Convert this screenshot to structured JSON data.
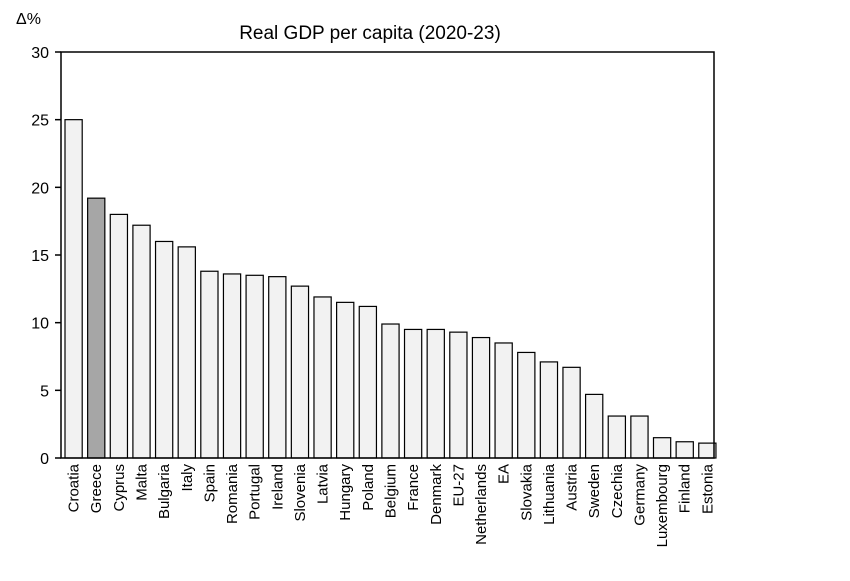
{
  "chart_data": {
    "type": "bar",
    "title": "Real GDP per capita (2020-23)",
    "ylabel": "Δ%",
    "xlabel": "",
    "ylim": [
      0,
      30
    ],
    "yticks": [
      0,
      5,
      10,
      15,
      20,
      25,
      30
    ],
    "grid": false,
    "legend": "none",
    "colors": {
      "default_bar": "#f2f2f2",
      "highlight_bar": "#a6a6a6",
      "stroke": "#000000"
    },
    "highlight": "Greece",
    "categories": [
      "Croatia",
      "Greece",
      "Cyprus",
      "Malta",
      "Bulgaria",
      "Italy",
      "Spain",
      "Romania",
      "Portugal",
      "Ireland",
      "Slovenia",
      "Latvia",
      "Hungary",
      "Poland",
      "Belgium",
      "France",
      "Denmark",
      "EU-27",
      "Netherlands",
      "EA",
      "Slovakia",
      "Lithuania",
      "Austria",
      "Sweden",
      "Czechia",
      "Germany",
      "Luxembourg",
      "Finland",
      "Estonia"
    ],
    "values": [
      25.0,
      19.2,
      18.0,
      17.2,
      16.0,
      15.6,
      13.8,
      13.6,
      13.5,
      13.4,
      12.7,
      11.9,
      11.5,
      11.2,
      9.9,
      9.5,
      9.5,
      9.3,
      8.9,
      8.5,
      7.8,
      7.1,
      6.7,
      4.7,
      3.1,
      3.1,
      1.5,
      1.2,
      1.1
    ]
  }
}
